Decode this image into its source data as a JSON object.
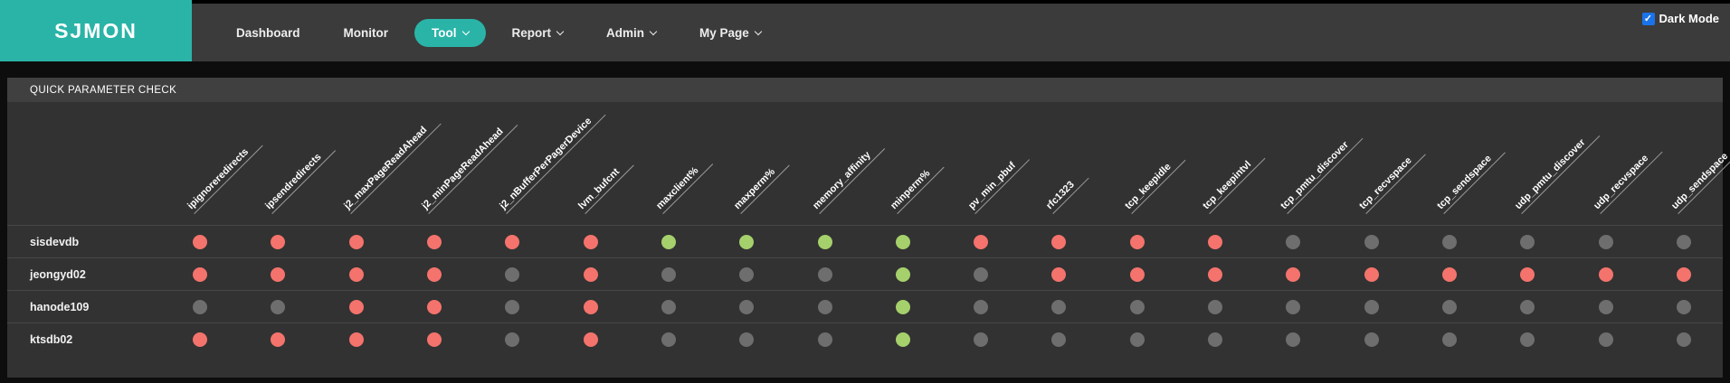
{
  "header": {
    "logo": "SJMON",
    "nav_items": [
      {
        "label": "Dashboard",
        "active": false,
        "caret": false
      },
      {
        "label": "Monitor",
        "active": false,
        "caret": false
      },
      {
        "label": "Tool",
        "active": true,
        "caret": true
      },
      {
        "label": "Report",
        "active": false,
        "caret": true
      },
      {
        "label": "Admin",
        "active": false,
        "caret": true
      },
      {
        "label": "My Page",
        "active": false,
        "caret": true
      }
    ],
    "dark_mode": {
      "label": "Dark Mode",
      "checked": true,
      "check_glyph": "✓"
    }
  },
  "panel": {
    "title": "QUICK PARAMETER CHECK"
  },
  "chart_data": {
    "type": "heatmap",
    "title": "QUICK PARAMETER CHECK",
    "columns": [
      "ipignoreredirects",
      "ipsendredirects",
      "j2_maxPageReadAhead",
      "j2_minPageReadAhead",
      "j2_nBufferPerPagerDevice",
      "lvm_bufcnt",
      "maxclient%",
      "maxperm%",
      "memory_affinity",
      "minperm%",
      "pv_min_pbuf",
      "rfc1323",
      "tcp_keepidle",
      "tcp_keepintvl",
      "tcp_pmtu_discover",
      "tcp_recvspace",
      "tcp_sendspace",
      "udp_pmtu_discover",
      "udp_recvspace",
      "udp_sendspace"
    ],
    "rows": [
      {
        "host": "sisdevdb",
        "statuses": [
          "red",
          "red",
          "red",
          "red",
          "red",
          "red",
          "green",
          "green",
          "green",
          "green",
          "red",
          "red",
          "red",
          "red",
          "gray",
          "gray",
          "gray",
          "gray",
          "gray",
          "gray"
        ]
      },
      {
        "host": "jeongyd02",
        "statuses": [
          "red",
          "red",
          "red",
          "red",
          "gray",
          "red",
          "gray",
          "gray",
          "gray",
          "green",
          "gray",
          "red",
          "red",
          "red",
          "red",
          "red",
          "red",
          "red",
          "red",
          "red"
        ]
      },
      {
        "host": "hanode109",
        "statuses": [
          "gray",
          "gray",
          "red",
          "red",
          "gray",
          "red",
          "gray",
          "gray",
          "gray",
          "green",
          "gray",
          "gray",
          "gray",
          "gray",
          "gray",
          "gray",
          "gray",
          "gray",
          "gray",
          "gray"
        ]
      },
      {
        "host": "ktsdb02",
        "statuses": [
          "red",
          "red",
          "red",
          "red",
          "gray",
          "red",
          "gray",
          "gray",
          "gray",
          "green",
          "gray",
          "gray",
          "gray",
          "gray",
          "gray",
          "gray",
          "gray",
          "gray",
          "gray",
          "gray"
        ]
      }
    ],
    "status_colors": {
      "red": "#f4736c",
      "green": "#a5d06c",
      "gray": "#6e6e6e"
    },
    "accent_color": "#2ab4a8",
    "checkbox_color": "#1a73e8"
  }
}
